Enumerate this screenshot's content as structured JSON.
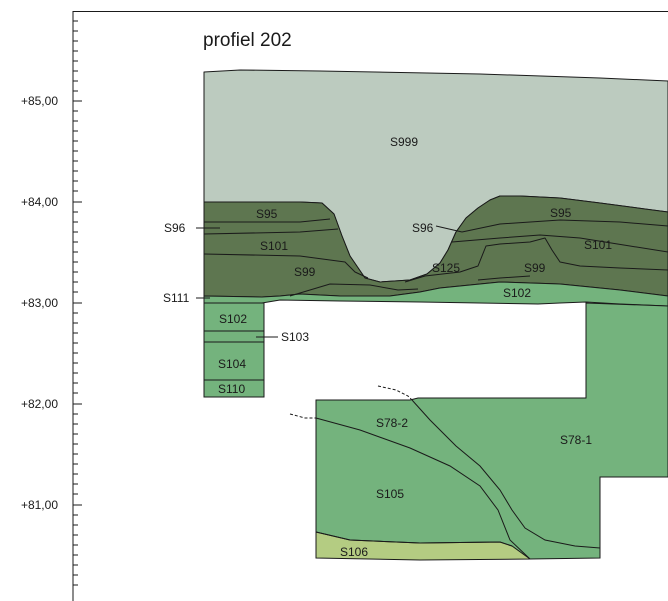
{
  "title": "profiel 202",
  "elevation_ticks": [
    "+85,00",
    "+84,00",
    "+83,00",
    "+82,00",
    "+81,00"
  ],
  "layers": {
    "S999": "S999",
    "S95_left": "S95",
    "S95_right": "S95",
    "S96_left": "S96",
    "S96_right": "S96",
    "S101_left": "S101",
    "S101_right": "S101",
    "S99_left": "S99",
    "S99_right": "S99",
    "S125": "S125",
    "S102_band": "S102",
    "S111": "S111",
    "S102_pillar": "S102",
    "S103": "S103",
    "S104": "S104",
    "S110": "S110",
    "S78_2": "S78-2",
    "S78_1": "S78-1",
    "S105": "S105",
    "S106": "S106"
  },
  "colors": {
    "s999": "#bccbbf",
    "dark_layers": "#5e7650",
    "green": "#74b37d",
    "yellow_green": "#b4cc82",
    "outline": "#1a1a1a"
  }
}
